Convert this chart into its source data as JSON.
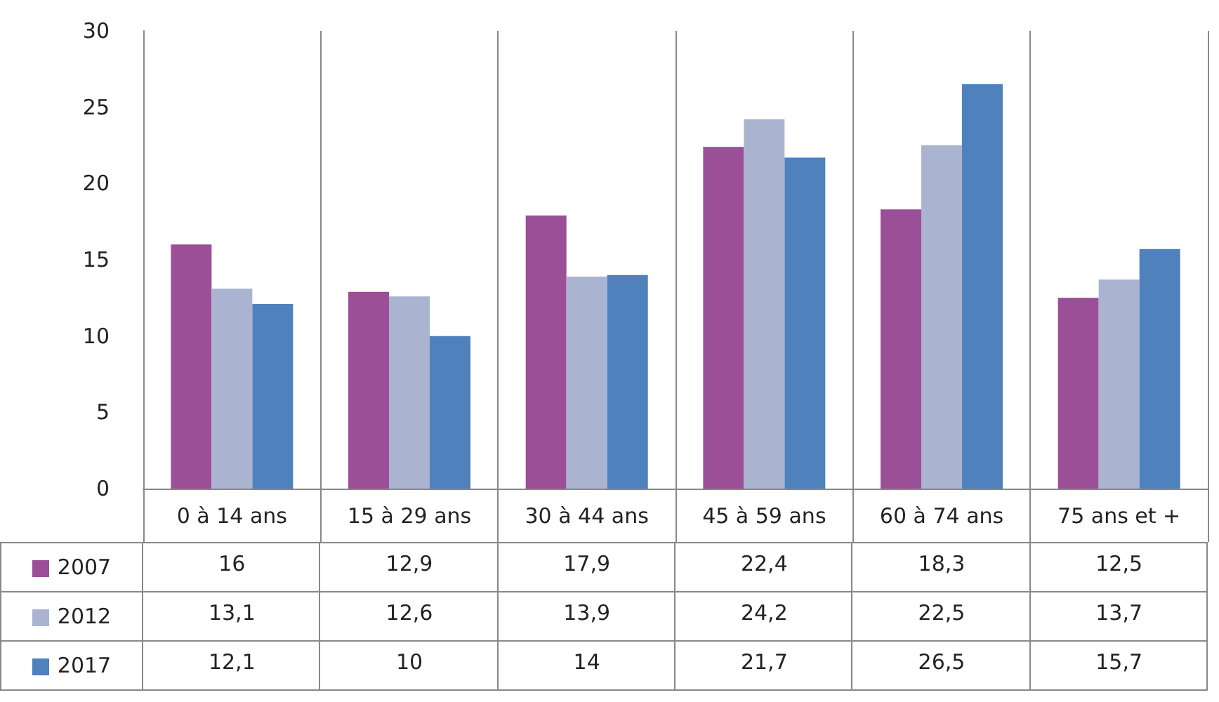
{
  "chart_data": {
    "type": "bar",
    "categories": [
      "0 à 14 ans",
      "15 à 29 ans",
      "30 à 44 ans",
      "45 à 59 ans",
      "60 à 74 ans",
      "75 ans et +"
    ],
    "series": [
      {
        "name": "2007",
        "color": "#9b4f96",
        "values": [
          16,
          12.9,
          17.9,
          22.4,
          18.3,
          12.5
        ],
        "value_labels": [
          "16",
          "12,9",
          "17,9",
          "22,4",
          "18,3",
          "12,5"
        ]
      },
      {
        "name": "2012",
        "color": "#aab4d0",
        "values": [
          13.1,
          12.6,
          13.9,
          24.2,
          22.5,
          13.7
        ],
        "value_labels": [
          "13,1",
          "12,6",
          "13,9",
          "24,2",
          "22,5",
          "13,7"
        ]
      },
      {
        "name": "2017",
        "color": "#4f81bd",
        "values": [
          12.1,
          10,
          14,
          21.7,
          26.5,
          15.7
        ],
        "value_labels": [
          "12,1",
          "10",
          "14",
          "21,7",
          "26,5",
          "15,7"
        ]
      }
    ],
    "ylim": [
      0,
      30
    ],
    "yticks": [
      0,
      5,
      10,
      15,
      20,
      25,
      30
    ],
    "grid": "x",
    "legend": "bottom"
  }
}
